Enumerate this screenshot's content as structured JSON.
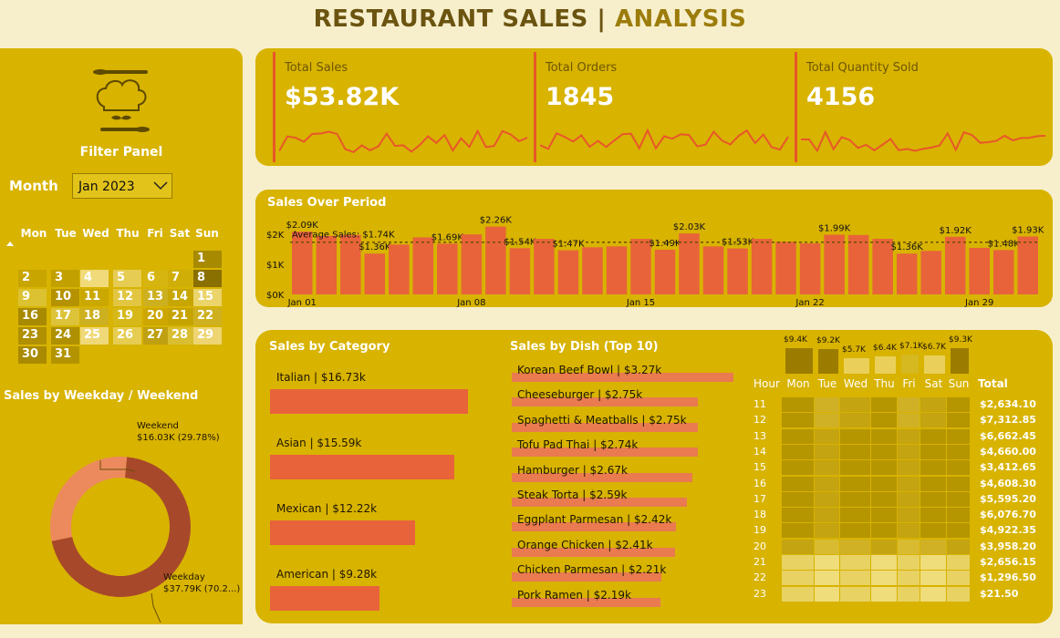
{
  "header": {
    "title_part1": "RESTAURANT SALES | ",
    "title_part2": "ANALYSIS"
  },
  "filter_panel": {
    "title": "Filter Panel",
    "month_label": "Month",
    "month_value": "Jan 2023",
    "calendar": {
      "days": [
        "Mon",
        "Tue",
        "Wed",
        "Thu",
        "Fri",
        "Sat",
        "Sun"
      ],
      "dates": [
        "1",
        "2",
        "3",
        "4",
        "5",
        "6",
        "7",
        "8",
        "9",
        "10",
        "11",
        "12",
        "13",
        "14",
        "15",
        "16",
        "17",
        "18",
        "19",
        "20",
        "21",
        "22",
        "23",
        "24",
        "25",
        "26",
        "27",
        "28",
        "29",
        "30",
        "31"
      ]
    }
  },
  "weekday_chart": {
    "title": "Sales by Weekday / Weekend",
    "weekend_label": "Weekend",
    "weekend_value": "$16.03K (29.78%)",
    "weekday_label": "Weekday",
    "weekday_value": "$37.79K (70.2...)",
    "weekend_pct": 29.78,
    "colors": {
      "weekend": "#ec8a5e",
      "weekday": "#a8482a"
    }
  },
  "kpis": [
    {
      "title": "Total Sales",
      "value": "$53.82K"
    },
    {
      "title": "Total Orders",
      "value": "1845"
    },
    {
      "title": "Total Quantity Sold",
      "value": "4156"
    }
  ],
  "sales_over_period": {
    "title": "Sales Over Period",
    "avg_label": "Average Sales: $1.74K",
    "y_ticks": [
      "$2K",
      "$1K",
      "$0K"
    ],
    "x_ticks": [
      "Jan 01",
      "Jan 08",
      "Jan 15",
      "Jan 22",
      "Jan 29"
    ],
    "chart_data": {
      "type": "bar",
      "x": [
        1,
        2,
        3,
        4,
        5,
        6,
        7,
        8,
        9,
        10,
        11,
        12,
        13,
        14,
        15,
        16,
        17,
        18,
        19,
        20,
        21,
        22,
        23,
        24,
        25,
        26,
        27,
        28,
        29,
        30,
        31
      ],
      "values": [
        2.09,
        1.95,
        1.98,
        1.36,
        1.66,
        1.9,
        1.69,
        2.0,
        2.26,
        1.54,
        1.85,
        1.47,
        1.57,
        1.6,
        1.85,
        1.49,
        2.03,
        1.6,
        1.53,
        1.85,
        1.75,
        1.7,
        1.99,
        1.98,
        1.85,
        1.36,
        1.45,
        1.92,
        1.55,
        1.48,
        1.93
      ],
      "average": 1.74,
      "ylim": [
        0,
        2.4
      ],
      "labels": {
        "1": "$2.09K",
        "4": "$1.36K",
        "7": "$1.69K",
        "9": "$2.26K",
        "10": "$1.54K",
        "12": "$1.47K",
        "16": "$1.49K",
        "17": "$2.03K",
        "19": "$1.53K",
        "23": "$1.99K",
        "26": "$1.36K",
        "28": "$1.92K",
        "30": "$1.48K",
        "31": "$1.93K"
      }
    }
  },
  "sales_by_category": {
    "title": "Sales by Category",
    "items": [
      {
        "label": "Italian | $16.73k",
        "value": 16.73
      },
      {
        "label": "Asian | $15.59k",
        "value": 15.59
      },
      {
        "label": "Mexican | $12.22k",
        "value": 12.22
      },
      {
        "label": "American | $9.28k",
        "value": 9.28
      }
    ]
  },
  "sales_by_dish": {
    "title": "Sales by Dish (Top 10)",
    "items": [
      {
        "label": "Korean Beef Bowl | $3.27k",
        "value": 3.27
      },
      {
        "label": "Cheeseburger | $2.75k",
        "value": 2.75
      },
      {
        "label": "Spaghetti & Meatballs | $2.75k",
        "value": 2.75
      },
      {
        "label": "Tofu Pad Thai | $2.74k",
        "value": 2.74
      },
      {
        "label": "Hamburger | $2.67k",
        "value": 2.67
      },
      {
        "label": "Steak Torta | $2.59k",
        "value": 2.59
      },
      {
        "label": "Eggplant Parmesan | $2.42k",
        "value": 2.42
      },
      {
        "label": "Orange Chicken | $2.41k",
        "value": 2.41
      },
      {
        "label": "Chicken Parmesan | $2.21k",
        "value": 2.21
      },
      {
        "label": "Pork Ramen | $2.19k",
        "value": 2.19
      }
    ]
  },
  "heatmap": {
    "hour_label": "Hour",
    "total_label": "Total",
    "days": [
      "Mon",
      "Tue",
      "Wed",
      "Thu",
      "Fri",
      "Sat",
      "Sun"
    ],
    "day_totals": [
      "$9.4K",
      "$9.2K",
      "$5.7K",
      "$6.4K",
      "$7.1K",
      "$6.7K",
      "$9.3K"
    ],
    "day_total_values": [
      9.4,
      9.2,
      5.7,
      6.4,
      7.1,
      6.7,
      9.3
    ],
    "hours": [
      "11",
      "12",
      "13",
      "14",
      "15",
      "16",
      "17",
      "18",
      "19",
      "20",
      "21",
      "22",
      "23"
    ],
    "hour_totals": [
      "$2,634.10",
      "$7,312.85",
      "$6,662.45",
      "$4,660.00",
      "$3,412.65",
      "$4,608.30",
      "$5,595.20",
      "$6,076.70",
      "$4,922.35",
      "$3,958.20",
      "$2,656.15",
      "$1,296.50",
      "$21.50"
    ]
  }
}
